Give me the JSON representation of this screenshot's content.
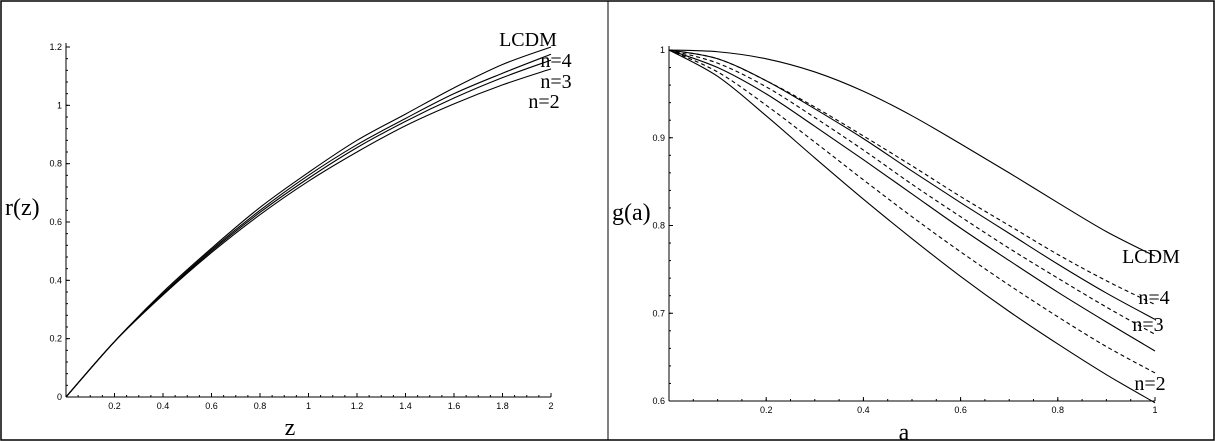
{
  "chart_data": [
    {
      "type": "line",
      "xlabel": "z",
      "ylabel": "r(z)",
      "xlim": [
        0,
        2
      ],
      "ylim": [
        0,
        1.2
      ],
      "xticks": [
        "0.2",
        "0.4",
        "0.6",
        "0.8",
        "1",
        "1.2",
        "1.4",
        "1.6",
        "1.8",
        "2"
      ],
      "yticks": [
        "0",
        "0.2",
        "0.4",
        "0.6",
        "0.8",
        "1",
        "1.2"
      ],
      "series": [
        {
          "name": "LCDM",
          "x": [
            0,
            0.2,
            0.4,
            0.6,
            0.8,
            1.0,
            1.2,
            1.4,
            1.6,
            1.8,
            2.0
          ],
          "y": [
            0,
            0.19,
            0.36,
            0.51,
            0.65,
            0.77,
            0.88,
            0.97,
            1.06,
            1.14,
            1.2
          ],
          "style": "solid"
        },
        {
          "name": "n=4",
          "x": [
            0,
            0.2,
            0.4,
            0.6,
            0.8,
            1.0,
            1.2,
            1.4,
            1.6,
            1.8,
            2.0
          ],
          "y": [
            0,
            0.19,
            0.355,
            0.505,
            0.64,
            0.76,
            0.865,
            0.955,
            1.04,
            1.11,
            1.175
          ],
          "style": "solid"
        },
        {
          "name": "n=3",
          "x": [
            0,
            0.2,
            0.4,
            0.6,
            0.8,
            1.0,
            1.2,
            1.4,
            1.6,
            1.8,
            2.0
          ],
          "y": [
            0,
            0.19,
            0.352,
            0.5,
            0.633,
            0.75,
            0.855,
            0.945,
            1.025,
            1.095,
            1.155
          ],
          "style": "solid"
        },
        {
          "name": "n=2",
          "x": [
            0,
            0.2,
            0.4,
            0.6,
            0.8,
            1.0,
            1.2,
            1.4,
            1.6,
            1.8,
            2.0
          ],
          "y": [
            0,
            0.19,
            0.35,
            0.495,
            0.625,
            0.74,
            0.84,
            0.93,
            1.005,
            1.07,
            1.125
          ],
          "style": "solid"
        }
      ]
    },
    {
      "type": "line",
      "xlabel": "a",
      "ylabel": "g(a)",
      "xlim": [
        0,
        1
      ],
      "ylim": [
        0.6,
        1
      ],
      "xticks": [
        "0.2",
        "0.4",
        "0.6",
        "0.8",
        "1"
      ],
      "yticks": [
        "0.6",
        "0.7",
        "0.8",
        "0.9",
        "1"
      ],
      "series": [
        {
          "name": "LCDM",
          "x": [
            0,
            0.1,
            0.2,
            0.3,
            0.4,
            0.5,
            0.6,
            0.7,
            0.8,
            0.9,
            1.0
          ],
          "y": [
            1.0,
            0.998,
            0.99,
            0.975,
            0.953,
            0.925,
            0.893,
            0.86,
            0.826,
            0.793,
            0.765
          ],
          "style": "solid"
        },
        {
          "name": "",
          "x": [
            0,
            0.1,
            0.2,
            0.3,
            0.4,
            0.5,
            0.6,
            0.7,
            0.8,
            0.9,
            1.0
          ],
          "y": [
            1.0,
            0.99,
            0.965,
            0.935,
            0.902,
            0.868,
            0.833,
            0.8,
            0.767,
            0.737,
            0.71
          ],
          "style": "dashed"
        },
        {
          "name": "n=4",
          "x": [
            0,
            0.1,
            0.2,
            0.3,
            0.4,
            0.5,
            0.6,
            0.7,
            0.8,
            0.9,
            1.0
          ],
          "y": [
            1.0,
            0.99,
            0.965,
            0.933,
            0.899,
            0.862,
            0.826,
            0.791,
            0.756,
            0.723,
            0.693
          ],
          "style": "solid"
        },
        {
          "name": "",
          "x": [
            0,
            0.1,
            0.2,
            0.3,
            0.4,
            0.5,
            0.6,
            0.7,
            0.8,
            0.9,
            1.0
          ],
          "y": [
            1.0,
            0.985,
            0.958,
            0.923,
            0.886,
            0.847,
            0.81,
            0.774,
            0.74,
            0.707,
            0.676
          ],
          "style": "dashed"
        },
        {
          "name": "n=3",
          "x": [
            0,
            0.1,
            0.2,
            0.3,
            0.4,
            0.5,
            0.6,
            0.7,
            0.8,
            0.9,
            1.0
          ],
          "y": [
            1.0,
            0.98,
            0.95,
            0.913,
            0.875,
            0.836,
            0.797,
            0.76,
            0.724,
            0.69,
            0.657
          ],
          "style": "solid"
        },
        {
          "name": "",
          "x": [
            0,
            0.1,
            0.2,
            0.3,
            0.4,
            0.5,
            0.6,
            0.7,
            0.8,
            0.9,
            1.0
          ],
          "y": [
            1.0,
            0.975,
            0.937,
            0.895,
            0.852,
            0.81,
            0.77,
            0.732,
            0.696,
            0.662,
            0.632
          ],
          "style": "dashed"
        },
        {
          "name": "n=2",
          "x": [
            0,
            0.1,
            0.2,
            0.3,
            0.4,
            0.5,
            0.6,
            0.7,
            0.8,
            0.9,
            1.0
          ],
          "y": [
            1.0,
            0.97,
            0.925,
            0.877,
            0.83,
            0.785,
            0.742,
            0.702,
            0.665,
            0.63,
            0.598
          ],
          "style": "solid"
        }
      ]
    }
  ]
}
